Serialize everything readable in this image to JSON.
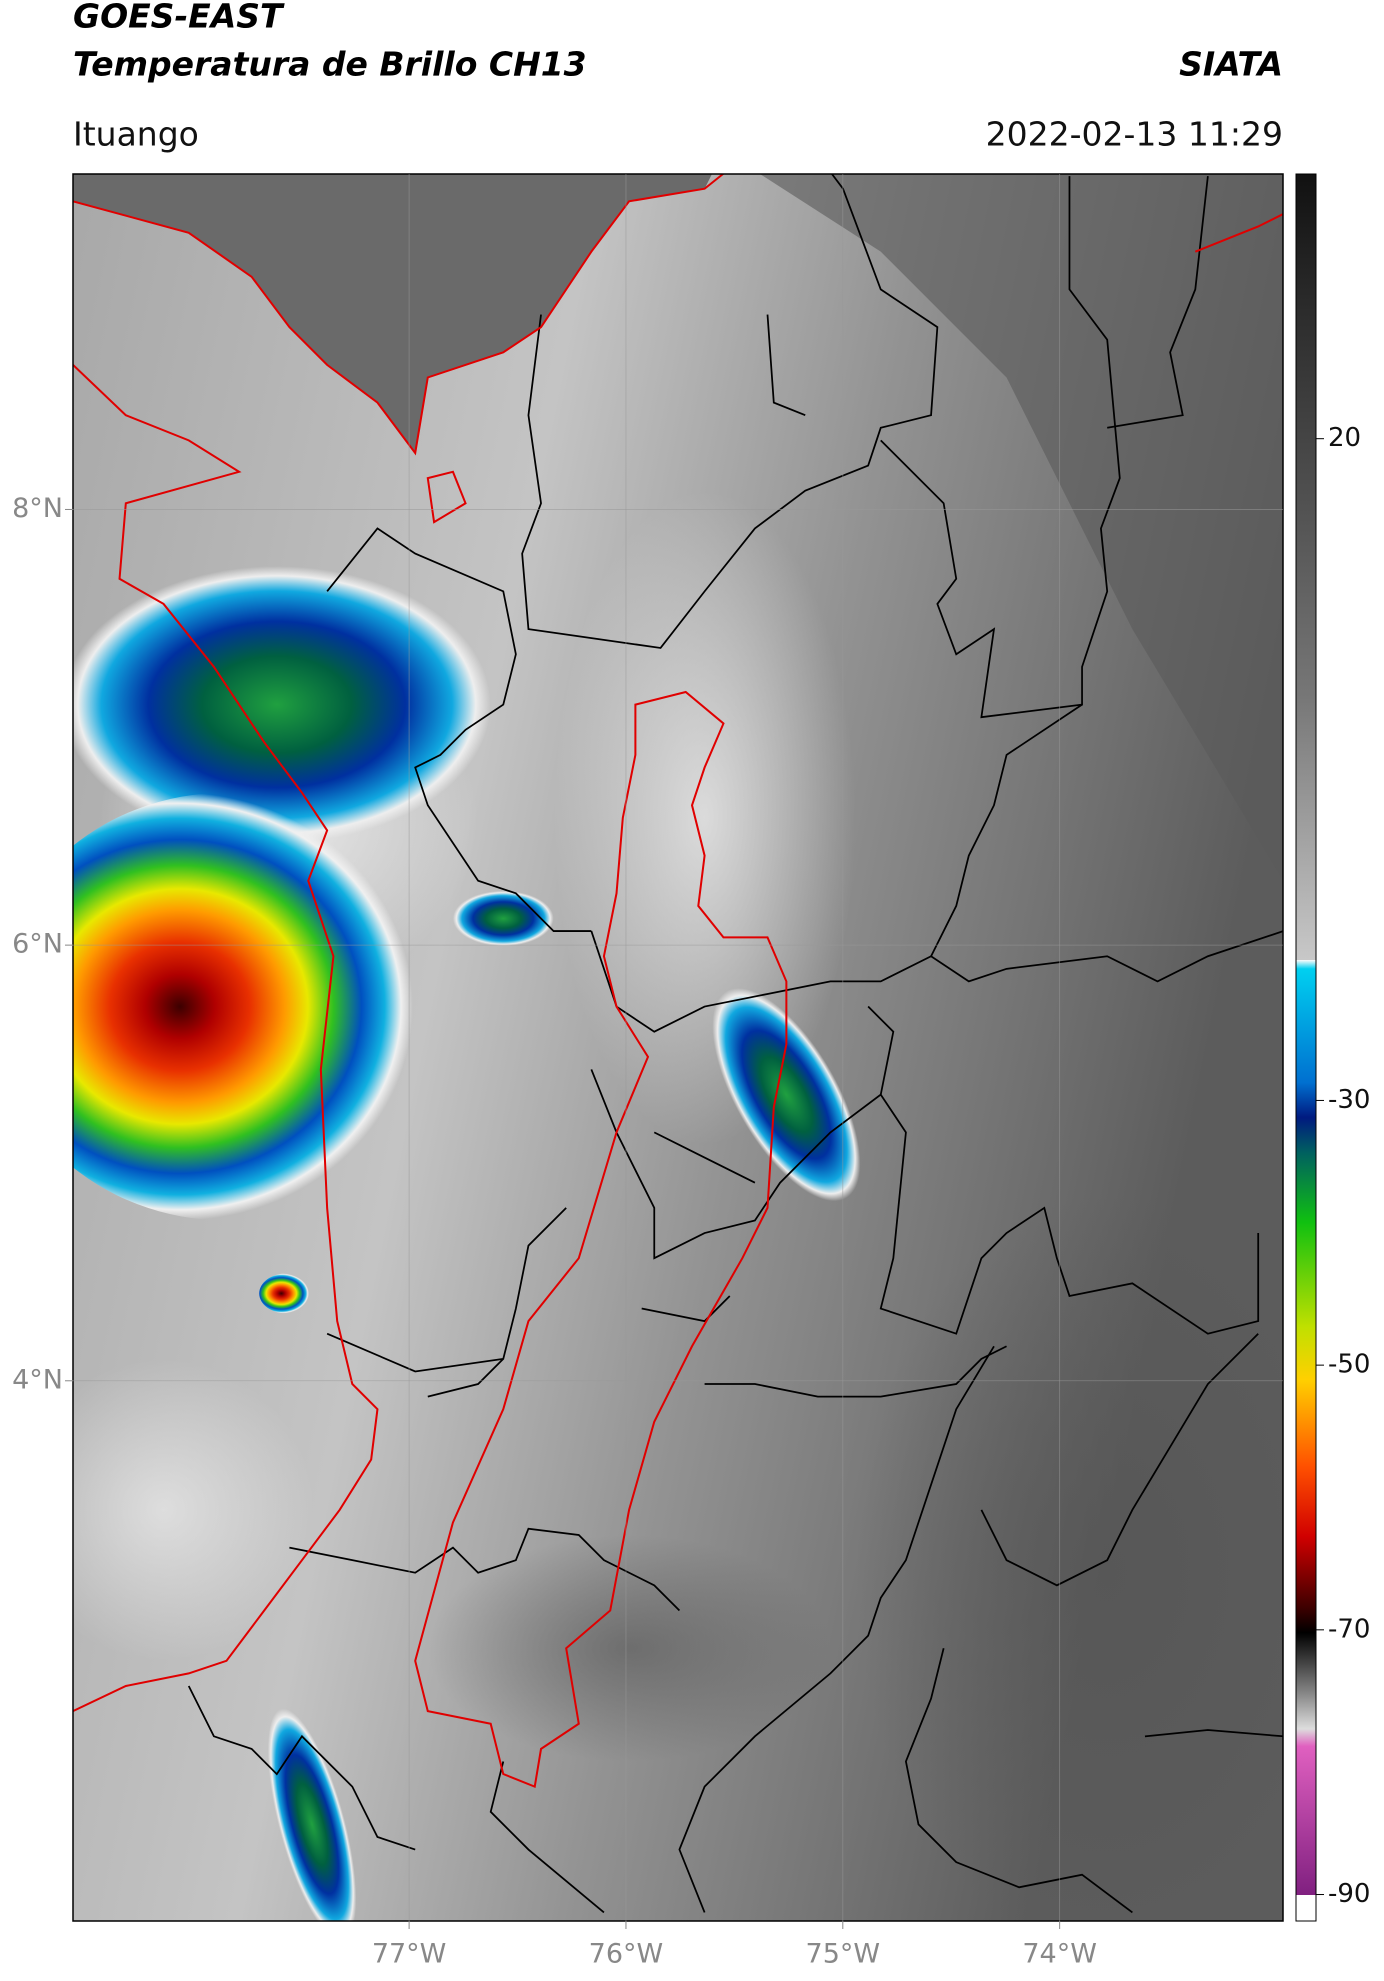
{
  "header": {
    "title": "GOES-EAST",
    "subtitle": "Temperatura de Brillo CH13",
    "org": "SIATA",
    "location": "Ituango",
    "datetime": "2022-02-13 11:29"
  },
  "chart_data": {
    "type": "map",
    "xlim": [
      -78.55,
      -72.97
    ],
    "ylim": [
      1.52,
      9.54
    ],
    "xticks": [
      {
        "value": -77,
        "label": "77°W"
      },
      {
        "value": -76,
        "label": "76°W"
      },
      {
        "value": -75,
        "label": "75°W"
      },
      {
        "value": -74,
        "label": "74°W"
      }
    ],
    "yticks": [
      {
        "value": 4,
        "label": "4°N"
      },
      {
        "value": 6,
        "label": "6°N"
      },
      {
        "value": 8,
        "label": "8°N"
      }
    ],
    "grid": true,
    "colorbar": {
      "clim": [
        -92,
        40
      ],
      "ticks": [
        20,
        -30,
        -50,
        -70,
        -90
      ]
    }
  }
}
